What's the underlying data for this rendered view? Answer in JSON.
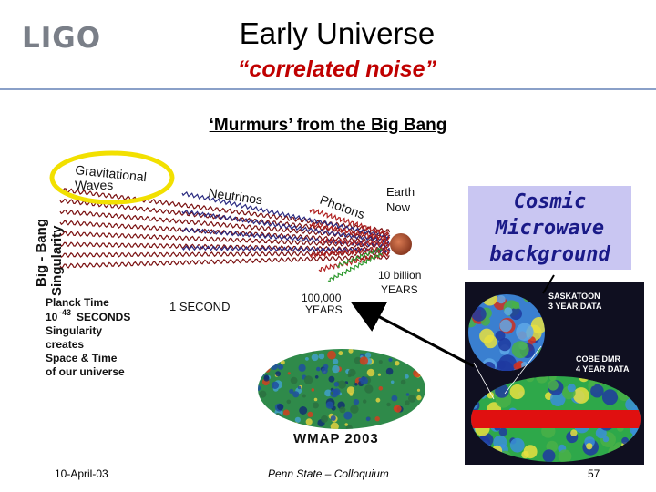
{
  "header": {
    "logo": "LIGO",
    "title": "Early Universe",
    "subtitle": "“correlated noise”"
  },
  "heading": "‘Murmurs’ from the Big Bang",
  "diagram": {
    "vertical_label_line1": "Big - Bang",
    "vertical_label_line2": "Singularity",
    "gravitational_line1": "Gravitational",
    "gravitational_line2": "Waves",
    "neutrinos": "Neutrinos",
    "photons": "Photons",
    "earth_line1": "Earth",
    "earth_line2": "Now",
    "ten_billion_line1": "10 billion",
    "ten_billion_line2": "YEARS",
    "hundred_thousand_line1": "100,000",
    "hundred_thousand_line2": "YEARS",
    "one_second": "1 SECOND",
    "planck_lines": [
      "Planck Time",
      "10",
      "-43",
      "SECONDS",
      "Singularity",
      "creates",
      "Space & Time",
      "of our universe"
    ]
  },
  "cmb_box": [
    "Cosmic",
    "Microwave",
    "background"
  ],
  "wmap_label": "WMAP 2003",
  "cobe_panel": {
    "saskatoon_line1": "SASKATOON",
    "saskatoon_line2": "3 YEAR DATA",
    "cobe_line1": "COBE DMR",
    "cobe_line2": "4 YEAR DATA"
  },
  "footer": {
    "date": "10-April-03",
    "venue": "Penn State – Colloquium",
    "page": "57"
  },
  "colors": {
    "subtitle": "#c00000",
    "rule": "#8aa0c8",
    "cmb_box_bg": "#c9c6f2",
    "cmb_box_text": "#1a1a88",
    "grav_ellipse": "#f2e000"
  }
}
